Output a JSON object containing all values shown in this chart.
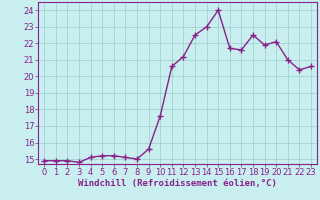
{
  "x": [
    0,
    1,
    2,
    3,
    4,
    5,
    6,
    7,
    8,
    9,
    10,
    11,
    12,
    13,
    14,
    15,
    16,
    17,
    18,
    19,
    20,
    21,
    22,
    23
  ],
  "y": [
    14.9,
    14.9,
    14.9,
    14.8,
    15.1,
    15.2,
    15.2,
    15.1,
    15.0,
    15.6,
    17.6,
    20.6,
    21.2,
    22.5,
    23.0,
    24.0,
    21.7,
    21.6,
    22.5,
    21.9,
    22.1,
    21.0,
    20.4,
    20.6
  ],
  "line_color": "#882288",
  "marker": "+",
  "bg_color": "#c8eef0",
  "grid_color": "#99cccc",
  "xlabel": "Windchill (Refroidissement éolien,°C)",
  "ylim_min": 14.7,
  "ylim_max": 24.5,
  "xlim_min": -0.5,
  "xlim_max": 23.5,
  "yticks": [
    15,
    16,
    17,
    18,
    19,
    20,
    21,
    22,
    23,
    24
  ],
  "xticks": [
    0,
    1,
    2,
    3,
    4,
    5,
    6,
    7,
    8,
    9,
    10,
    11,
    12,
    13,
    14,
    15,
    16,
    17,
    18,
    19,
    20,
    21,
    22,
    23
  ],
  "xlabel_fontsize": 6.5,
  "tick_fontsize": 6,
  "line_width": 1.0,
  "marker_size": 4,
  "marker_edge_width": 1.0
}
